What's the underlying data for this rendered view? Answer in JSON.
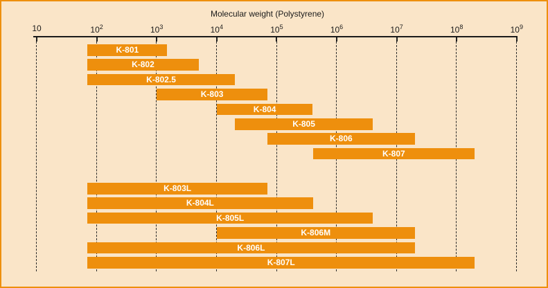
{
  "chart_data": {
    "type": "bar",
    "variant": "horizontal-range-log",
    "title": "Molecular weight (Polystyrene)",
    "x_axis": {
      "scale": "log10",
      "min_exponent": 1,
      "max_exponent": 9,
      "tick_base": "10",
      "tick_exponents": [
        1,
        2,
        3,
        4,
        5,
        6,
        7,
        8,
        9
      ],
      "grid": "dashed-vertical"
    },
    "column_groups": [
      {
        "name": "standard-series",
        "rows": [
          {
            "label": "K-801",
            "range_min": 70,
            "range_max": 1500
          },
          {
            "label": "K-802",
            "range_min": 70,
            "range_max": 5000
          },
          {
            "label": "K-802.5",
            "range_min": 70,
            "range_max": 20000
          },
          {
            "label": "K-803",
            "range_min": 1000,
            "range_max": 70000
          },
          {
            "label": "K-804",
            "range_min": 10000,
            "range_max": 400000
          },
          {
            "label": "K-805",
            "range_min": 20000,
            "range_max": 4000000
          },
          {
            "label": "K-806",
            "range_min": 70000,
            "range_max": 20000000
          },
          {
            "label": "K-807",
            "range_min": 400000,
            "range_max": 200000000
          }
        ]
      },
      {
        "name": "linear-series",
        "rows": [
          {
            "label": "K-803L",
            "range_min": 70,
            "range_max": 70000
          },
          {
            "label": "K-804L",
            "range_min": 70,
            "range_max": 400000
          },
          {
            "label": "K-805L",
            "range_min": 70,
            "range_max": 4000000
          },
          {
            "label": "K-806M",
            "range_min": 10000,
            "range_max": 20000000
          },
          {
            "label": "K-806L",
            "range_min": 70,
            "range_max": 20000000
          },
          {
            "label": "K-807L",
            "range_min": 70,
            "range_max": 200000000
          }
        ]
      }
    ],
    "colors": {
      "bar": "#EE8F0D",
      "bar_label": "#FFFFFF",
      "background": "#FAE5C8",
      "frame_border": "#EE8F0D",
      "axis": "#1A1A1A",
      "grid": "#2A2A2A",
      "text": "#1A1A1A"
    }
  }
}
